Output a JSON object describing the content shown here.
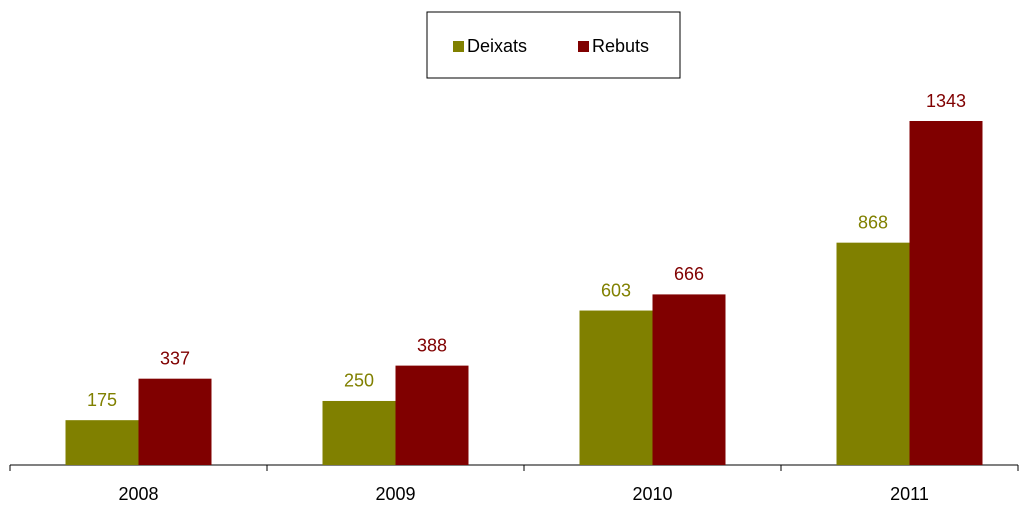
{
  "chart_data": {
    "type": "bar",
    "categories": [
      "2008",
      "2009",
      "2010",
      "2011"
    ],
    "series": [
      {
        "name": "Deixats",
        "color": "#808000",
        "values": [
          175,
          250,
          603,
          868
        ]
      },
      {
        "name": "Rebuts",
        "color": "#800000",
        "values": [
          337,
          388,
          666,
          1343
        ]
      }
    ],
    "legend": "top"
  }
}
